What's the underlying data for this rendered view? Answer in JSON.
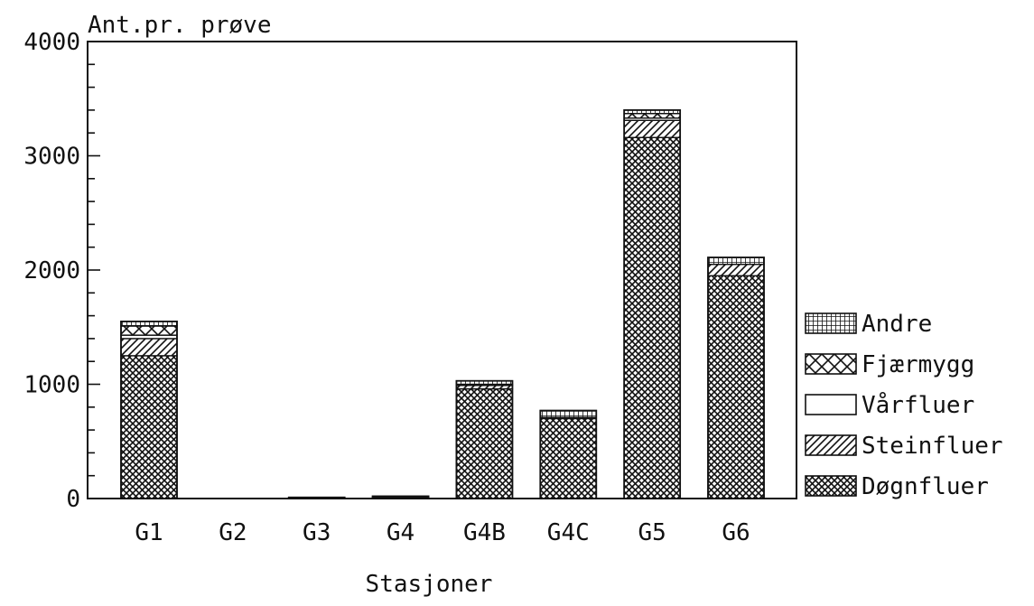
{
  "chart_data": {
    "type": "bar",
    "stacked": true,
    "title": "",
    "ylabel": "Ant.pr. prøve",
    "xlabel": "Stasjoner",
    "ylim": [
      0,
      4000
    ],
    "yticks": [
      0,
      1000,
      2000,
      3000,
      4000
    ],
    "grid": false,
    "legend_position": "right",
    "categories": [
      "G1",
      "G2",
      "G3",
      "G4",
      "G4B",
      "G4C",
      "G5",
      "G6"
    ],
    "series": [
      {
        "name": "Døgnfluer",
        "pattern": "dense-crosshatch",
        "values": [
          1250,
          0,
          0,
          10,
          960,
          700,
          3160,
          1950
        ]
      },
      {
        "name": "Steinfluer",
        "pattern": "diagonal-hatch",
        "values": [
          150,
          0,
          0,
          0,
          30,
          10,
          150,
          100
        ]
      },
      {
        "name": "Vårfluer",
        "pattern": "blank",
        "values": [
          30,
          0,
          0,
          0,
          10,
          0,
          20,
          0
        ]
      },
      {
        "name": "Fjærmygg",
        "pattern": "crosshatch",
        "values": [
          80,
          0,
          10,
          5,
          0,
          0,
          40,
          0
        ]
      },
      {
        "name": "Andre",
        "pattern": "grid",
        "values": [
          40,
          0,
          0,
          5,
          30,
          60,
          30,
          60
        ]
      }
    ]
  }
}
